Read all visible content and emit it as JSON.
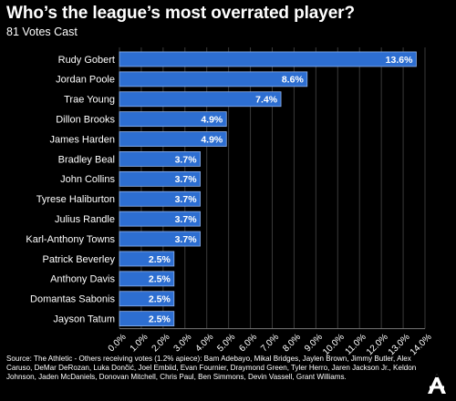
{
  "title": "Who’s the league’s most overrated player?",
  "subtitle": "81 Votes Cast",
  "footer": "Source: The Athletic - Others receiving votes (1.2% apiece): Bam Adebayo, Mikal Bridges, Jaylen Brown, Jimmy Butler, Alex Caruso, DeMar DeRozan, Luka Dončić, Joel Embiid, Evan Fournier, Draymond Green, Tyler Herro, Jaren Jackson Jr., Keldon Johnson, Jaden McDaniels, Donovan Mitchell, Chris Paul, Ben Simmons, Devin Vassell, Grant Williams.",
  "logo_icon": "the-athletic-logo-icon",
  "colors": {
    "background": "#000000",
    "bar": "#2d6ed1",
    "bar_border": "#8fb3ee",
    "grid": "#3a3a3a",
    "axis": "#777777",
    "text": "#ffffff"
  },
  "chart_data": {
    "type": "bar",
    "orientation": "horizontal",
    "categories": [
      "Rudy Gobert",
      "Jordan Poole",
      "Trae Young",
      "Dillon Brooks",
      "James Harden",
      "Bradley Beal",
      "John Collins",
      "Tyrese Haliburton",
      "Julius Randle",
      "Karl-Anthony Towns",
      "Patrick Beverley",
      "Anthony Davis",
      "Domantas Sabonis",
      "Jayson Tatum"
    ],
    "values": [
      13.6,
      8.6,
      7.4,
      4.9,
      4.9,
      3.7,
      3.7,
      3.7,
      3.7,
      3.7,
      2.5,
      2.5,
      2.5,
      2.5
    ],
    "data_labels": [
      "13.6%",
      "8.6%",
      "7.4%",
      "4.9%",
      "4.9%",
      "3.7%",
      "3.7%",
      "3.7%",
      "3.7%",
      "3.7%",
      "2.5%",
      "2.5%",
      "2.5%",
      "2.5%"
    ],
    "x_ticks": [
      "0.0%",
      "1.0%",
      "2.0%",
      "3.0%",
      "4.0%",
      "5.0%",
      "6.0%",
      "7.0%",
      "8.0%",
      "9.0%",
      "10.0%",
      "11.0%",
      "12.0%",
      "13.0%",
      "14.0%"
    ],
    "xlim": [
      0,
      14
    ],
    "grid": true,
    "legend": "none"
  }
}
